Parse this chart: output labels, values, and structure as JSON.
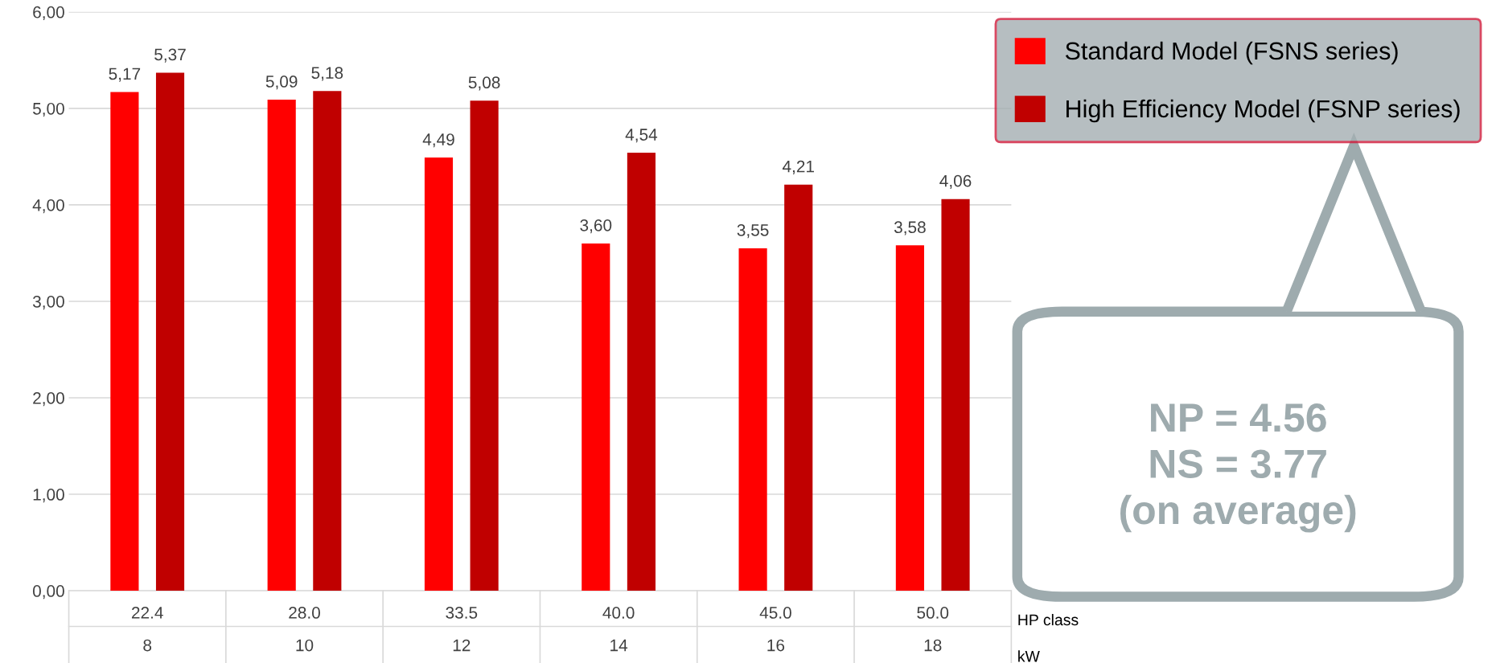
{
  "chart_data": {
    "type": "bar",
    "categories": [
      "22.4\n8",
      "28.0\n10",
      "33.5\n12",
      "40.0\n14",
      "45.0\n16",
      "50.0\n18"
    ],
    "series": [
      {
        "name": "Standard Model (FSNS series)",
        "color": "#ff0000",
        "values": [
          5.17,
          5.09,
          4.49,
          3.6,
          3.55,
          3.58
        ],
        "value_labels": [
          "5,17",
          "5,09",
          "4,49",
          "3,60",
          "3,55",
          "3,58"
        ]
      },
      {
        "name": "High Efficiency Model (FSNP series)",
        "color": "#c00000",
        "values": [
          5.37,
          5.18,
          5.08,
          4.54,
          4.21,
          4.06
        ],
        "value_labels": [
          "5,37",
          "5,18",
          "5,08",
          "4,54",
          "4,21",
          "4,06"
        ]
      }
    ],
    "ylim": [
      0,
      6
    ],
    "yticks": [
      {
        "value": 0,
        "label": "0,00"
      },
      {
        "value": 1,
        "label": "1,00"
      },
      {
        "value": 2,
        "label": "2,00"
      },
      {
        "value": 3,
        "label": "3,00"
      },
      {
        "value": 4,
        "label": "4,00"
      },
      {
        "value": 5,
        "label": "5,00"
      },
      {
        "value": 6,
        "label": "6,00"
      }
    ],
    "grid": "y",
    "legend": "top right",
    "annotations": [
      "HP class",
      "kW",
      "NP = 4.56\nNS = 3.77\n(on average)"
    ]
  }
}
